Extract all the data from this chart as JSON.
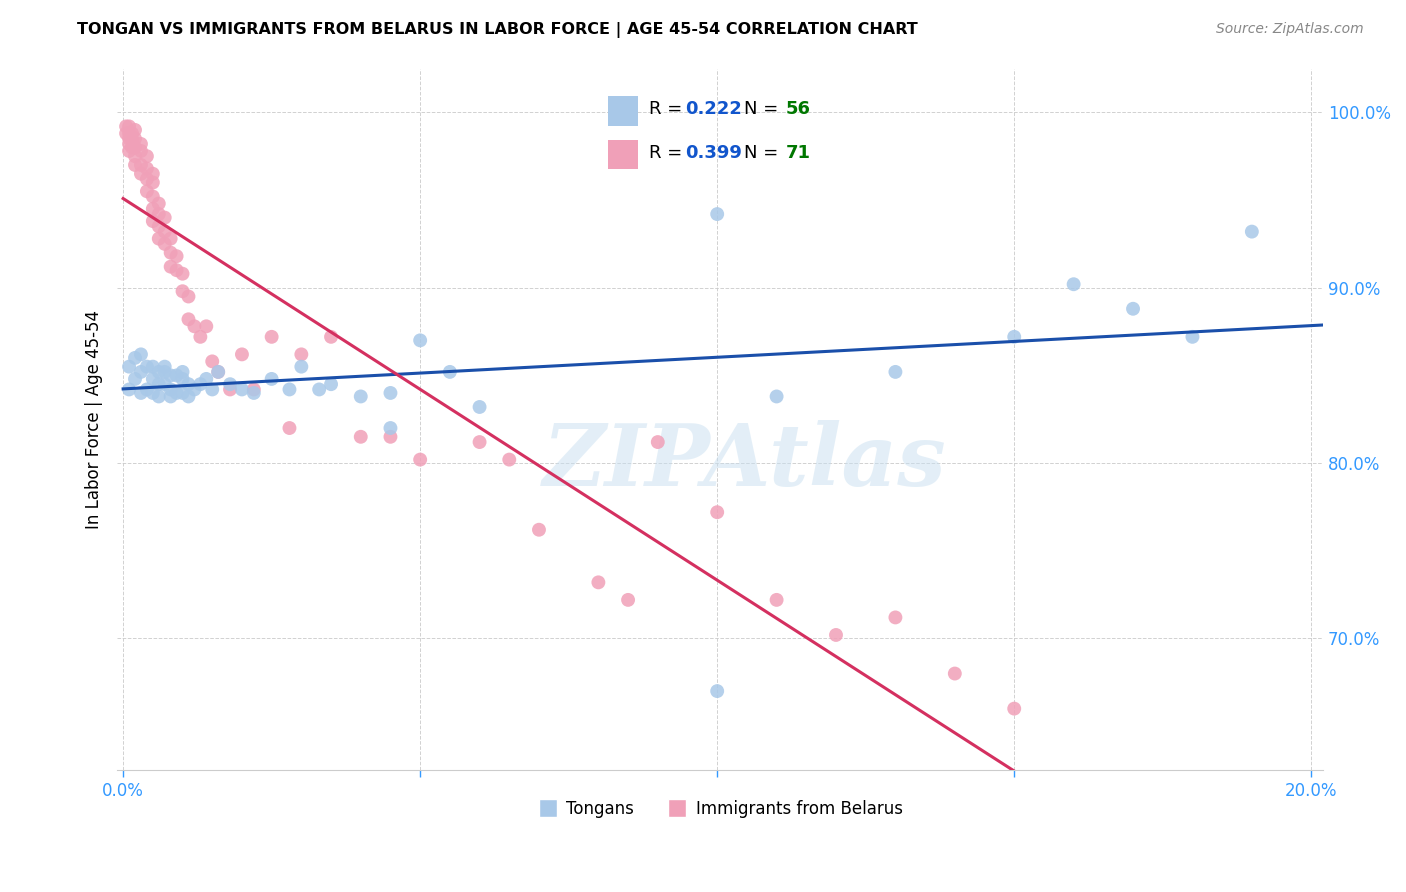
{
  "title": "TONGAN VS IMMIGRANTS FROM BELARUS IN LABOR FORCE | AGE 45-54 CORRELATION CHART",
  "source": "Source: ZipAtlas.com",
  "ylabel": "In Labor Force | Age 45-54",
  "xlim": [
    -0.001,
    0.202
  ],
  "ylim": [
    0.625,
    1.025
  ],
  "ytick_positions": [
    0.7,
    0.8,
    0.9,
    1.0
  ],
  "ytick_labels": [
    "70.0%",
    "80.0%",
    "90.0%",
    "100.0%"
  ],
  "xtick_positions": [
    0.0,
    0.05,
    0.1,
    0.15,
    0.2
  ],
  "xticklabels_show": [
    "0.0%",
    "",
    "",
    "",
    "20.0%"
  ],
  "tongan_R": 0.222,
  "tongan_N": 56,
  "belarus_R": 0.399,
  "belarus_N": 71,
  "tongan_color": "#a8c8e8",
  "tongan_line_color": "#1a4faa",
  "belarus_color": "#f0a0b8",
  "belarus_line_color": "#d43060",
  "legend_R_color": "#1155cc",
  "legend_N_color": "#007700",
  "watermark": "ZIPAtlas",
  "label_tongans": "Tongans",
  "label_belarus": "Immigrants from Belarus",
  "tongan_x": [
    0.001,
    0.001,
    0.002,
    0.002,
    0.003,
    0.003,
    0.003,
    0.004,
    0.004,
    0.005,
    0.005,
    0.005,
    0.006,
    0.006,
    0.006,
    0.007,
    0.007,
    0.007,
    0.008,
    0.008,
    0.008,
    0.009,
    0.009,
    0.01,
    0.01,
    0.01,
    0.011,
    0.011,
    0.012,
    0.013,
    0.014,
    0.015,
    0.016,
    0.018,
    0.02,
    0.022,
    0.025,
    0.028,
    0.03,
    0.033,
    0.035,
    0.04,
    0.045,
    0.05,
    0.055,
    0.06,
    0.1,
    0.11,
    0.13,
    0.15,
    0.16,
    0.17,
    0.18,
    0.19,
    0.045,
    0.1
  ],
  "tongan_y": [
    0.842,
    0.855,
    0.848,
    0.86,
    0.852,
    0.84,
    0.862,
    0.855,
    0.842,
    0.855,
    0.848,
    0.84,
    0.852,
    0.845,
    0.838,
    0.855,
    0.845,
    0.852,
    0.85,
    0.842,
    0.838,
    0.85,
    0.84,
    0.848,
    0.84,
    0.852,
    0.845,
    0.838,
    0.842,
    0.845,
    0.848,
    0.842,
    0.852,
    0.845,
    0.842,
    0.84,
    0.848,
    0.842,
    0.855,
    0.842,
    0.845,
    0.838,
    0.84,
    0.87,
    0.852,
    0.832,
    0.942,
    0.838,
    0.852,
    0.872,
    0.902,
    0.888,
    0.872,
    0.932,
    0.82,
    0.67
  ],
  "belarus_x": [
    0.0005,
    0.0005,
    0.001,
    0.001,
    0.001,
    0.001,
    0.001,
    0.0015,
    0.0015,
    0.0015,
    0.002,
    0.002,
    0.002,
    0.002,
    0.002,
    0.003,
    0.003,
    0.003,
    0.003,
    0.004,
    0.004,
    0.004,
    0.004,
    0.005,
    0.005,
    0.005,
    0.005,
    0.005,
    0.006,
    0.006,
    0.006,
    0.006,
    0.007,
    0.007,
    0.007,
    0.008,
    0.008,
    0.008,
    0.009,
    0.009,
    0.01,
    0.01,
    0.011,
    0.011,
    0.012,
    0.013,
    0.014,
    0.015,
    0.016,
    0.018,
    0.02,
    0.022,
    0.025,
    0.028,
    0.03,
    0.035,
    0.04,
    0.045,
    0.05,
    0.06,
    0.065,
    0.07,
    0.08,
    0.085,
    0.09,
    0.1,
    0.11,
    0.12,
    0.13,
    0.14,
    0.15
  ],
  "belarus_y": [
    0.992,
    0.988,
    0.992,
    0.988,
    0.985,
    0.982,
    0.978,
    0.988,
    0.985,
    0.98,
    0.99,
    0.985,
    0.98,
    0.975,
    0.97,
    0.982,
    0.978,
    0.97,
    0.965,
    0.975,
    0.968,
    0.962,
    0.955,
    0.965,
    0.96,
    0.952,
    0.945,
    0.938,
    0.948,
    0.942,
    0.935,
    0.928,
    0.94,
    0.932,
    0.925,
    0.928,
    0.92,
    0.912,
    0.918,
    0.91,
    0.908,
    0.898,
    0.895,
    0.882,
    0.878,
    0.872,
    0.878,
    0.858,
    0.852,
    0.842,
    0.862,
    0.842,
    0.872,
    0.82,
    0.862,
    0.872,
    0.815,
    0.815,
    0.802,
    0.812,
    0.802,
    0.762,
    0.732,
    0.722,
    0.812,
    0.772,
    0.722,
    0.702,
    0.712,
    0.68,
    0.66
  ]
}
